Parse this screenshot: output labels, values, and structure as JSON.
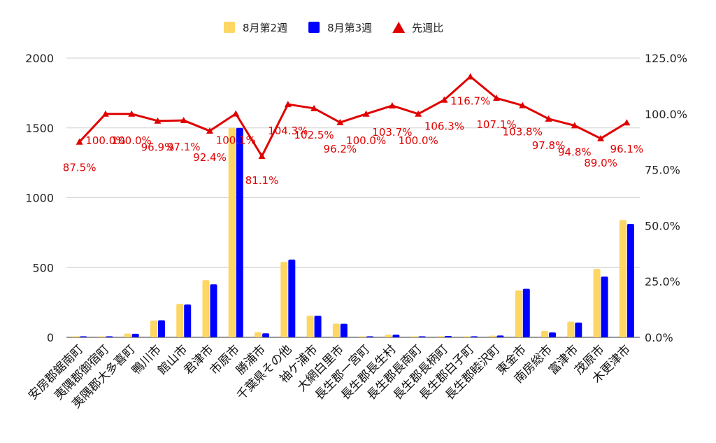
{
  "chart_data": {
    "type": "bar",
    "categories": [
      "安房郡鋸南町",
      "夷隅郡御宿町",
      "夷隅郡大多喜町",
      "鴨川市",
      "館山市",
      "君津市",
      "市原市",
      "勝浦市",
      "千葉県その他",
      "袖ケ浦市",
      "大網白里市",
      "長生郡一宮町",
      "長生郡長生村",
      "長生郡長南町",
      "長生郡長柄町",
      "長生郡白子町",
      "長生郡睦沢町",
      "東金市",
      "南房総市",
      "富津市",
      "茂原市",
      "木更津市"
    ],
    "series": [
      {
        "name": "8月第2週",
        "type": "bar",
        "axis": "left",
        "color": "#FDD663",
        "values": [
          8,
          4,
          27,
          120,
          240,
          410,
          1500,
          37,
          540,
          155,
          98,
          4,
          18,
          3,
          9,
          3,
          12,
          335,
          45,
          112,
          490,
          840
        ]
      },
      {
        "name": "8月第3週",
        "type": "bar",
        "axis": "left",
        "color": "#0000FF",
        "values": [
          7,
          4,
          26,
          122,
          235,
          380,
          1500,
          29,
          557,
          155,
          97,
          4,
          19,
          3,
          10,
          3,
          13,
          348,
          35,
          106,
          435,
          812
        ]
      },
      {
        "name": "先週比",
        "type": "line",
        "axis": "right",
        "color": "#E00000",
        "values": [
          87.5,
          100.0,
          100.0,
          96.9,
          97.1,
          92.4,
          100.1,
          81.1,
          104.3,
          102.5,
          96.2,
          100.0,
          103.7,
          100.0,
          106.3,
          116.7,
          107.1,
          103.8,
          97.8,
          94.8,
          89.0,
          96.1
        ],
        "labels": [
          "87.5%",
          "100.0%",
          "100.0%",
          "96.9%",
          "97.1%",
          "92.4%",
          "100.1%",
          "81.1%",
          "104.3%",
          "102.5%",
          "96.2%",
          "100.0%",
          "103.7%",
          "100.0%",
          "106.3%",
          "116.7%",
          "107.1%",
          "103.8%",
          "97.8%",
          "94.8%",
          "89.0%",
          "96.1%"
        ]
      }
    ],
    "left_axis": {
      "min": 0,
      "max": 2000,
      "ticks": [
        "0",
        "500",
        "1000",
        "1500",
        "2000"
      ]
    },
    "right_axis": {
      "min": 0,
      "max": 125,
      "ticks": [
        "0.0%",
        "25.0%",
        "50.0%",
        "75.0%",
        "100.0%",
        "125.0%"
      ]
    },
    "grid": true,
    "legend_position": "top",
    "title": ""
  }
}
